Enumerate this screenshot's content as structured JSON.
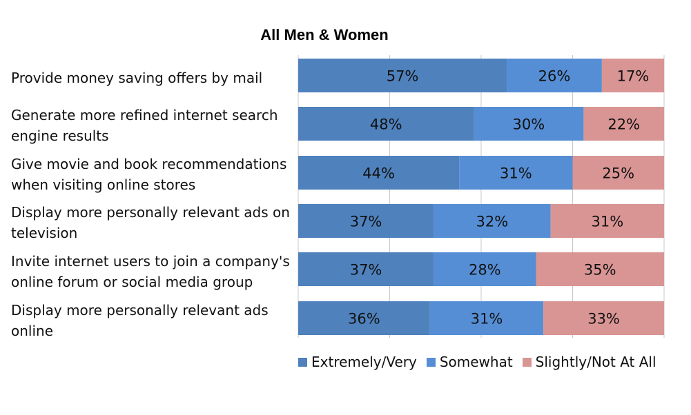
{
  "chart_data": {
    "type": "bar",
    "orientation": "horizontal",
    "stacked": true,
    "percent_stacked": true,
    "title": "All Men & Women",
    "categories": [
      "Provide money saving offers by mail",
      "Generate more refined internet search engine results",
      "Give movie and book recommendations when visiting online stores",
      "Display more personally relevant ads on television",
      "Invite internet users to join a company's online forum or social media group",
      "Display more personally relevant ads online"
    ],
    "series": [
      {
        "name": "Extremely/Very",
        "color": "#4f81bd",
        "values": [
          57,
          48,
          44,
          37,
          37,
          36
        ],
        "labels": [
          "57%",
          "48%",
          "44%",
          "37%",
          "37%",
          "36%"
        ]
      },
      {
        "name": "Somewhat",
        "color": "#558ed5",
        "values": [
          26,
          30,
          31,
          32,
          28,
          31
        ],
        "labels": [
          "26%",
          "30%",
          "31%",
          "32%",
          "28%",
          "31%"
        ]
      },
      {
        "name": "Slightly/Not At All",
        "color": "#d99594",
        "values": [
          17,
          22,
          25,
          31,
          35,
          33
        ],
        "labels": [
          "17%",
          "22%",
          "25%",
          "31%",
          "35%",
          "33%"
        ]
      }
    ],
    "xlim": [
      0,
      100
    ],
    "grid": true,
    "legend_position": "bottom"
  }
}
